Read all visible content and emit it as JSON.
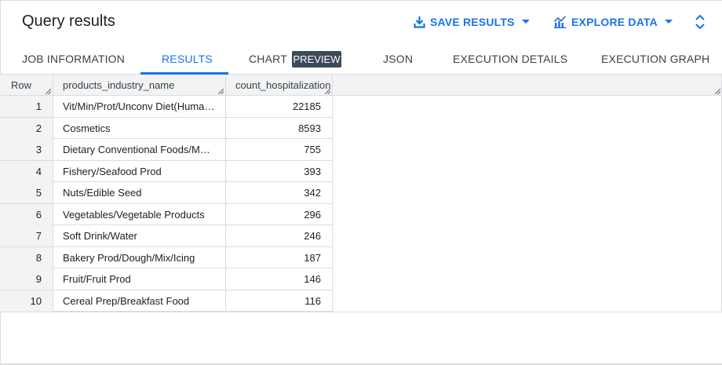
{
  "header": {
    "title": "Query results",
    "save_results": "SAVE RESULTS",
    "explore_data": "EXPLORE DATA"
  },
  "tabs": [
    {
      "label": "JOB INFORMATION"
    },
    {
      "label": "RESULTS"
    },
    {
      "label": "CHART"
    },
    {
      "label": "JSON"
    },
    {
      "label": "EXECUTION DETAILS"
    },
    {
      "label": "EXECUTION GRAPH"
    }
  ],
  "chart_badge": "PREVIEW",
  "active_tab": "RESULTS",
  "table": {
    "columns": [
      "Row",
      "products_industry_name",
      "count_hospitalization"
    ],
    "rows": [
      {
        "row": "1",
        "name": "Vit/Min/Prot/Unconv Diet(Human/Animal)",
        "count": "22185"
      },
      {
        "row": "2",
        "name": "Cosmetics",
        "count": "8593"
      },
      {
        "row": "3",
        "name": "Dietary Conventional Foods/Meal Replacements",
        "count": "755"
      },
      {
        "row": "4",
        "name": "Fishery/Seafood Prod",
        "count": "393"
      },
      {
        "row": "5",
        "name": "Nuts/Edible Seed",
        "count": "342"
      },
      {
        "row": "6",
        "name": "Vegetables/Vegetable Products",
        "count": "296"
      },
      {
        "row": "7",
        "name": "Soft Drink/Water",
        "count": "246"
      },
      {
        "row": "8",
        "name": "Bakery Prod/Dough/Mix/Icing",
        "count": "187"
      },
      {
        "row": "9",
        "name": "Fruit/Fruit Prod",
        "count": "146"
      },
      {
        "row": "10",
        "name": "Cereal Prep/Breakfast Food",
        "count": "116"
      }
    ]
  },
  "colors": {
    "accent": "#1a73e8",
    "badge_bg": "#3c4a5a",
    "header_bg": "#f1f3f4",
    "border": "#dadce0"
  },
  "icons": {
    "save": "download-icon",
    "explore": "chart-icon",
    "caret": "caret-down-icon",
    "expand": "unfold-icon",
    "resize": "resize-handle-icon"
  }
}
